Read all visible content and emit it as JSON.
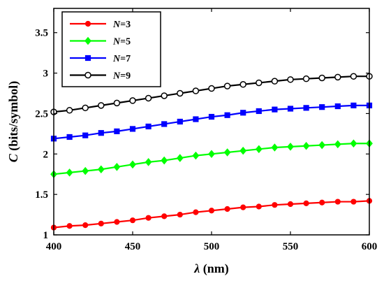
{
  "chart_data": {
    "type": "line",
    "title": "",
    "xlabel": {
      "symbol": "λ",
      "unit": " (nm)"
    },
    "ylabel": {
      "symbol": "C",
      "unit": " (bits/symbol)"
    },
    "xlim": [
      400,
      600
    ],
    "ylim": [
      1,
      3.8
    ],
    "xticks": [
      "400",
      "450",
      "500",
      "550",
      "600"
    ],
    "yticks": [
      "1",
      "1.5",
      "2",
      "2.5",
      "3",
      "3.5"
    ],
    "grid": false,
    "legend_position": "top-left",
    "x": [
      400,
      410,
      420,
      430,
      440,
      450,
      460,
      470,
      480,
      490,
      500,
      510,
      520,
      530,
      540,
      550,
      560,
      570,
      580,
      590,
      600
    ],
    "series": [
      {
        "name": "N=3",
        "legend_symbol": "N",
        "legend_value": "=3",
        "color": "#ff0000",
        "marker": "circle-filled",
        "values": [
          1.09,
          1.11,
          1.12,
          1.14,
          1.16,
          1.18,
          1.21,
          1.23,
          1.25,
          1.28,
          1.3,
          1.32,
          1.34,
          1.35,
          1.37,
          1.38,
          1.39,
          1.4,
          1.41,
          1.41,
          1.42
        ]
      },
      {
        "name": "N=5",
        "legend_symbol": "N",
        "legend_value": "=5",
        "color": "#00ff00",
        "marker": "diamond-filled",
        "values": [
          1.75,
          1.77,
          1.79,
          1.81,
          1.84,
          1.87,
          1.9,
          1.92,
          1.95,
          1.98,
          2.0,
          2.02,
          2.04,
          2.06,
          2.08,
          2.09,
          2.1,
          2.11,
          2.12,
          2.13,
          2.13
        ]
      },
      {
        "name": "N=7",
        "legend_symbol": "N",
        "legend_value": "=7",
        "color": "#0000ff",
        "marker": "square-filled",
        "values": [
          2.19,
          2.21,
          2.23,
          2.26,
          2.28,
          2.31,
          2.34,
          2.37,
          2.4,
          2.43,
          2.46,
          2.48,
          2.51,
          2.53,
          2.55,
          2.56,
          2.57,
          2.58,
          2.59,
          2.6,
          2.6
        ]
      },
      {
        "name": "N=9",
        "legend_symbol": "N",
        "legend_value": "=9",
        "color": "#000000",
        "marker": "circle-open",
        "values": [
          2.52,
          2.54,
          2.57,
          2.6,
          2.63,
          2.66,
          2.69,
          2.72,
          2.75,
          2.78,
          2.81,
          2.84,
          2.86,
          2.88,
          2.9,
          2.92,
          2.93,
          2.94,
          2.95,
          2.96,
          2.96
        ]
      }
    ]
  }
}
